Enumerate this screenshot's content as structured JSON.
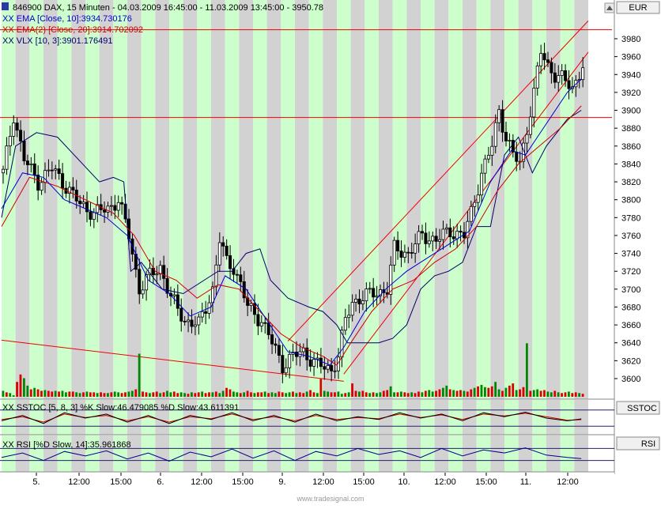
{
  "header": {
    "symbol_line": "846900  DAX, 15 Minuten - 04.03.2009 16:45:00 - 11.03.2009 13:45:00 - 3950.78",
    "ema1": "XX EMA [Close, 10]:3934.730176",
    "ema2": "XX EMA(2) [Close, 20]:3914.702092",
    "vlx": "XX VLX [10, 3]:3901.176491"
  },
  "main_panel": {
    "currency": "EUR",
    "price_ticks": [
      3600,
      3620,
      3640,
      3660,
      3680,
      3700,
      3720,
      3740,
      3760,
      3780,
      3800,
      3820,
      3840,
      3860,
      3880,
      3900,
      3920,
      3940,
      3960,
      3980
    ],
    "ylim": [
      3580,
      3995
    ]
  },
  "sstoc_panel": {
    "label": "SSTOC",
    "legend": "XX SSTOC [5, 8, 3] %K Slow:46.479085 %D Slow:43.611391"
  },
  "rsi_panel": {
    "label": "RSI",
    "legend": "XX RSI [%D Slow, 14]:35.961868"
  },
  "time_axis": {
    "labels": [
      "5.",
      "12:00",
      "15:00",
      "6.",
      "12:00",
      "15:00",
      "9.",
      "12:00",
      "15:00",
      "10.",
      "12:00",
      "15:00",
      "11.",
      "12:00"
    ]
  },
  "footer": {
    "watermark": "www.tradesignal.com"
  },
  "colors": {
    "green_band": "#ccffcc",
    "gray_band": "#d2d2d2",
    "candle": "#000000",
    "ema10": "#0000cc",
    "ema20": "#cc0000",
    "vlx": "#000066",
    "trendline": "#ee0000",
    "volume_red": "#dd0000",
    "volume_green": "#008800"
  },
  "chart_data": {
    "type": "candlestick",
    "x_unit": "bar index (15-minute bars)",
    "x_range": [
      0,
      168
    ],
    "ylim": [
      3580,
      3995
    ],
    "close_path_points": [
      [
        0,
        3830
      ],
      [
        3,
        3895
      ],
      [
        6,
        3845
      ],
      [
        10,
        3820
      ],
      [
        14,
        3835
      ],
      [
        18,
        3815
      ],
      [
        22,
        3795
      ],
      [
        26,
        3785
      ],
      [
        30,
        3790
      ],
      [
        33,
        3800
      ],
      [
        36,
        3760
      ],
      [
        39,
        3700
      ],
      [
        42,
        3715
      ],
      [
        45,
        3725
      ],
      [
        48,
        3690
      ],
      [
        52,
        3665
      ],
      [
        56,
        3660
      ],
      [
        60,
        3700
      ],
      [
        62,
        3755
      ],
      [
        64,
        3730
      ],
      [
        66,
        3725
      ],
      [
        68,
        3705
      ],
      [
        70,
        3680
      ],
      [
        74,
        3665
      ],
      [
        77,
        3640
      ],
      [
        80,
        3615
      ],
      [
        83,
        3625
      ],
      [
        86,
        3630
      ],
      [
        90,
        3615
      ],
      [
        94,
        3610
      ],
      [
        96,
        3625
      ],
      [
        98,
        3665
      ],
      [
        100,
        3685
      ],
      [
        102,
        3690
      ],
      [
        106,
        3695
      ],
      [
        110,
        3700
      ],
      [
        112,
        3745
      ],
      [
        116,
        3740
      ],
      [
        120,
        3760
      ],
      [
        124,
        3755
      ],
      [
        128,
        3765
      ],
      [
        132,
        3760
      ],
      [
        134,
        3785
      ],
      [
        137,
        3830
      ],
      [
        140,
        3860
      ],
      [
        142,
        3900
      ],
      [
        144,
        3870
      ],
      [
        146,
        3850
      ],
      [
        148,
        3840
      ],
      [
        150,
        3880
      ],
      [
        152,
        3920
      ],
      [
        154,
        3965
      ],
      [
        156,
        3950
      ],
      [
        158,
        3940
      ],
      [
        160,
        3935
      ],
      [
        163,
        3925
      ],
      [
        166,
        3950
      ]
    ],
    "ema10_points": [
      [
        0,
        3790
      ],
      [
        6,
        3830
      ],
      [
        12,
        3825
      ],
      [
        18,
        3800
      ],
      [
        24,
        3790
      ],
      [
        30,
        3780
      ],
      [
        36,
        3760
      ],
      [
        42,
        3710
      ],
      [
        48,
        3695
      ],
      [
        54,
        3670
      ],
      [
        60,
        3680
      ],
      [
        64,
        3715
      ],
      [
        70,
        3700
      ],
      [
        76,
        3665
      ],
      [
        82,
        3630
      ],
      [
        88,
        3625
      ],
      [
        94,
        3615
      ],
      [
        98,
        3635
      ],
      [
        104,
        3675
      ],
      [
        110,
        3700
      ],
      [
        116,
        3720
      ],
      [
        122,
        3735
      ],
      [
        128,
        3750
      ],
      [
        134,
        3765
      ],
      [
        140,
        3820
      ],
      [
        146,
        3855
      ],
      [
        150,
        3850
      ],
      [
        156,
        3885
      ],
      [
        162,
        3920
      ],
      [
        166,
        3935
      ]
    ],
    "ema20_points": [
      [
        0,
        3770
      ],
      [
        8,
        3825
      ],
      [
        16,
        3815
      ],
      [
        24,
        3800
      ],
      [
        32,
        3785
      ],
      [
        38,
        3760
      ],
      [
        44,
        3720
      ],
      [
        50,
        3710
      ],
      [
        56,
        3690
      ],
      [
        62,
        3705
      ],
      [
        68,
        3700
      ],
      [
        74,
        3675
      ],
      [
        80,
        3650
      ],
      [
        86,
        3635
      ],
      [
        92,
        3625
      ],
      [
        96,
        3615
      ],
      [
        100,
        3640
      ],
      [
        106,
        3675
      ],
      [
        112,
        3700
      ],
      [
        118,
        3710
      ],
      [
        124,
        3730
      ],
      [
        130,
        3745
      ],
      [
        136,
        3770
      ],
      [
        142,
        3810
      ],
      [
        148,
        3840
      ],
      [
        154,
        3860
      ],
      [
        160,
        3880
      ],
      [
        166,
        3905
      ]
    ],
    "vlx_points": [
      [
        0,
        3780
      ],
      [
        4,
        3860
      ],
      [
        10,
        3875
      ],
      [
        16,
        3870
      ],
      [
        22,
        3845
      ],
      [
        28,
        3820
      ],
      [
        32,
        3825
      ],
      [
        35,
        3820
      ],
      [
        37,
        3720
      ],
      [
        40,
        3730
      ],
      [
        46,
        3700
      ],
      [
        52,
        3695
      ],
      [
        58,
        3710
      ],
      [
        62,
        3720
      ],
      [
        66,
        3720
      ],
      [
        70,
        3740
      ],
      [
        74,
        3745
      ],
      [
        77,
        3710
      ],
      [
        82,
        3690
      ],
      [
        88,
        3680
      ],
      [
        92,
        3675
      ],
      [
        96,
        3660
      ],
      [
        99,
        3640
      ],
      [
        104,
        3640
      ],
      [
        108,
        3640
      ],
      [
        112,
        3645
      ],
      [
        116,
        3660
      ],
      [
        120,
        3700
      ],
      [
        124,
        3715
      ],
      [
        128,
        3720
      ],
      [
        132,
        3730
      ],
      [
        136,
        3770
      ],
      [
        140,
        3770
      ],
      [
        144,
        3850
      ],
      [
        148,
        3870
      ],
      [
        152,
        3830
      ],
      [
        156,
        3860
      ],
      [
        162,
        3890
      ],
      [
        166,
        3900
      ]
    ],
    "resistance_lines": [
      3990,
      3892
    ],
    "trendlines": [
      {
        "from": [
          0,
          3643
        ],
        "to": [
          98,
          3597
        ]
      },
      {
        "from": [
          82,
          3642
        ],
        "to": [
          168,
          4000
        ]
      },
      {
        "from": [
          98,
          3605
        ],
        "to": [
          168,
          3965
        ]
      }
    ],
    "volume_bars_pct": [
      8,
      6,
      5,
      2,
      20,
      30,
      25,
      15,
      10,
      12,
      10,
      8,
      9,
      8,
      7,
      8,
      7,
      8,
      6,
      7,
      7,
      6,
      5,
      6,
      7,
      6,
      6,
      5,
      6,
      5,
      5,
      6,
      7,
      6,
      5,
      6,
      7,
      8,
      10,
      58,
      7,
      6,
      5,
      6,
      7,
      5,
      6,
      8,
      6,
      7,
      5,
      6,
      5,
      4,
      6,
      5,
      6,
      7,
      5,
      6,
      6,
      7,
      5,
      8,
      12,
      10,
      7,
      6,
      5,
      6,
      8,
      6,
      5,
      6,
      6,
      7,
      5,
      6,
      5,
      7,
      6,
      5,
      6,
      7,
      5,
      6,
      5,
      7,
      9,
      6,
      5,
      24,
      8,
      7,
      6,
      6,
      7,
      4,
      5,
      6,
      18,
      8,
      7,
      8,
      6,
      5,
      6,
      5,
      6,
      8,
      9,
      14,
      6,
      6,
      7,
      6,
      5,
      6,
      5,
      7,
      6,
      8,
      9,
      7,
      8,
      10,
      12,
      15,
      10,
      9,
      8,
      9,
      8,
      7,
      10,
      12,
      14,
      16,
      13,
      12,
      14,
      20,
      10,
      8,
      12,
      15,
      18,
      9,
      10,
      13,
      72,
      8,
      9,
      10,
      8,
      9,
      7,
      6,
      8,
      6,
      5,
      6,
      7,
      5,
      6,
      5,
      4
    ],
    "sstoc_k_points": [
      [
        0,
        40
      ],
      [
        6,
        60
      ],
      [
        12,
        30
      ],
      [
        18,
        70
      ],
      [
        24,
        50
      ],
      [
        30,
        65
      ],
      [
        36,
        35
      ],
      [
        42,
        60
      ],
      [
        48,
        30
      ],
      [
        54,
        60
      ],
      [
        60,
        45
      ],
      [
        66,
        70
      ],
      [
        72,
        40
      ],
      [
        78,
        60
      ],
      [
        84,
        35
      ],
      [
        90,
        65
      ],
      [
        96,
        40
      ],
      [
        102,
        55
      ],
      [
        108,
        45
      ],
      [
        114,
        70
      ],
      [
        120,
        50
      ],
      [
        126,
        65
      ],
      [
        132,
        40
      ],
      [
        138,
        70
      ],
      [
        144,
        55
      ],
      [
        150,
        72
      ],
      [
        156,
        50
      ],
      [
        162,
        40
      ],
      [
        166,
        47
      ]
    ],
    "sstoc_d_points": [
      [
        0,
        45
      ],
      [
        6,
        55
      ],
      [
        12,
        35
      ],
      [
        18,
        65
      ],
      [
        24,
        52
      ],
      [
        30,
        60
      ],
      [
        36,
        40
      ],
      [
        42,
        55
      ],
      [
        48,
        35
      ],
      [
        54,
        55
      ],
      [
        60,
        48
      ],
      [
        66,
        65
      ],
      [
        72,
        45
      ],
      [
        78,
        55
      ],
      [
        84,
        40
      ],
      [
        90,
        60
      ],
      [
        96,
        45
      ],
      [
        102,
        52
      ],
      [
        108,
        48
      ],
      [
        114,
        65
      ],
      [
        120,
        52
      ],
      [
        126,
        62
      ],
      [
        132,
        45
      ],
      [
        138,
        65
      ],
      [
        144,
        58
      ],
      [
        150,
        68
      ],
      [
        156,
        55
      ],
      [
        162,
        42
      ],
      [
        166,
        44
      ]
    ],
    "rsi_points": [
      [
        0,
        40
      ],
      [
        6,
        55
      ],
      [
        12,
        30
      ],
      [
        18,
        60
      ],
      [
        24,
        45
      ],
      [
        30,
        62
      ],
      [
        36,
        35
      ],
      [
        42,
        55
      ],
      [
        48,
        28
      ],
      [
        54,
        58
      ],
      [
        60,
        42
      ],
      [
        66,
        68
      ],
      [
        72,
        38
      ],
      [
        78,
        62
      ],
      [
        84,
        30
      ],
      [
        90,
        60
      ],
      [
        96,
        45
      ],
      [
        102,
        70
      ],
      [
        108,
        50
      ],
      [
        114,
        62
      ],
      [
        120,
        40
      ],
      [
        126,
        70
      ],
      [
        132,
        45
      ],
      [
        138,
        65
      ],
      [
        144,
        55
      ],
      [
        150,
        72
      ],
      [
        156,
        48
      ],
      [
        162,
        40
      ],
      [
        166,
        36
      ]
    ]
  }
}
